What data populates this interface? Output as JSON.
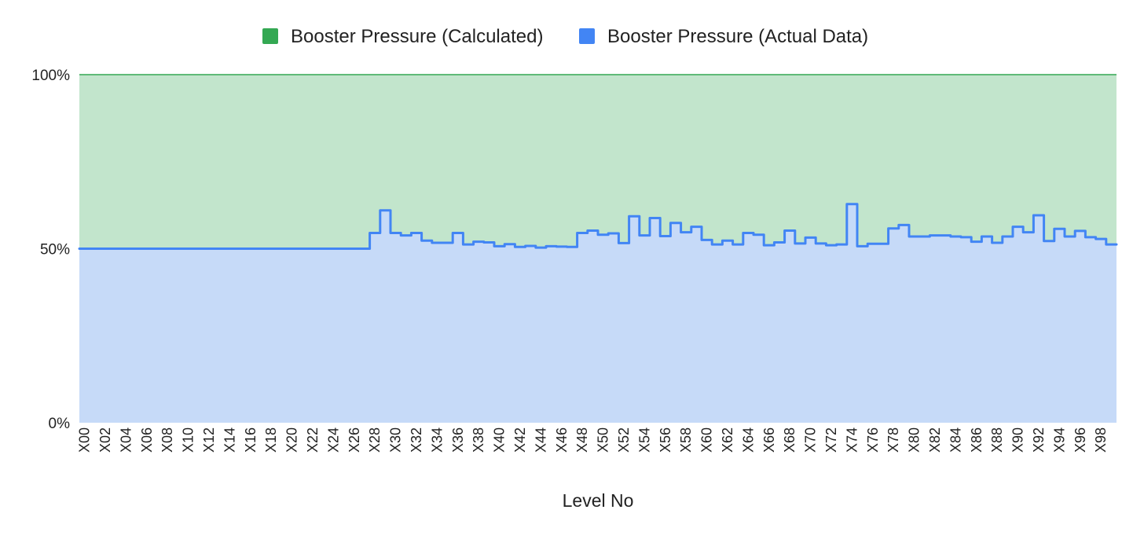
{
  "chart_data": {
    "type": "area",
    "step": true,
    "stacked": true,
    "title": "",
    "xlabel": "Level No",
    "ylabel": "",
    "ylim": [
      0,
      100
    ],
    "y_ticks": [
      "0%",
      "50%",
      "100%"
    ],
    "y_tick_values": [
      0,
      50,
      100
    ],
    "legend_position": "top",
    "categories": [
      "X00",
      "X01",
      "X02",
      "X03",
      "X04",
      "X05",
      "X06",
      "X07",
      "X08",
      "X09",
      "X10",
      "X11",
      "X12",
      "X13",
      "X14",
      "X15",
      "X16",
      "X17",
      "X18",
      "X19",
      "X20",
      "X21",
      "X22",
      "X23",
      "X24",
      "X25",
      "X26",
      "X27",
      "X28",
      "X29",
      "X30",
      "X31",
      "X32",
      "X33",
      "X34",
      "X35",
      "X36",
      "X37",
      "X38",
      "X39",
      "X40",
      "X41",
      "X42",
      "X43",
      "X44",
      "X45",
      "X46",
      "X47",
      "X48",
      "X49",
      "X50",
      "X51",
      "X52",
      "X53",
      "X54",
      "X55",
      "X56",
      "X57",
      "X58",
      "X59",
      "X60",
      "X61",
      "X62",
      "X63",
      "X64",
      "X65",
      "X66",
      "X67",
      "X68",
      "X69",
      "X70",
      "X71",
      "X72",
      "X73",
      "X74",
      "X75",
      "X76",
      "X77",
      "X78",
      "X79",
      "X80",
      "X81",
      "X82",
      "X83",
      "X84",
      "X85",
      "X86",
      "X87",
      "X88",
      "X89",
      "X90",
      "X91",
      "X92",
      "X93",
      "X94",
      "X95",
      "X96",
      "X97",
      "X98",
      "X99"
    ],
    "x_tick_labels": [
      "X00",
      "X02",
      "X04",
      "X06",
      "X08",
      "X10",
      "X12",
      "X14",
      "X16",
      "X18",
      "X20",
      "X22",
      "X24",
      "X26",
      "X28",
      "X30",
      "X32",
      "X34",
      "X36",
      "X38",
      "X40",
      "X42",
      "X44",
      "X46",
      "X48",
      "X50",
      "X52",
      "X54",
      "X56",
      "X58",
      "X60",
      "X62",
      "X64",
      "X66",
      "X68",
      "X70",
      "X72",
      "X74",
      "X76",
      "X78",
      "X80",
      "X82",
      "X84",
      "X86",
      "X88",
      "X90",
      "X92",
      "X94",
      "X96",
      "X98"
    ],
    "series": [
      {
        "name": "Booster Pressure (Actual Data)",
        "color": "#4285f4",
        "fill": "#c6daf8",
        "values": [
          50,
          50,
          50,
          50,
          50,
          50,
          50,
          50,
          50,
          50,
          50,
          50,
          50,
          50,
          50,
          50,
          50,
          50,
          50,
          50,
          50,
          50,
          50,
          50,
          50,
          50,
          50,
          50,
          54.5,
          61,
          54.5,
          53.8,
          54.5,
          52.3,
          51.7,
          51.7,
          54.5,
          51.2,
          52,
          51.8,
          50.7,
          51.3,
          50.5,
          50.8,
          50.3,
          50.7,
          50.6,
          50.5,
          54.5,
          55.2,
          54,
          54.4,
          51.6,
          59.3,
          53.8,
          58.8,
          53.6,
          57.4,
          54.7,
          56.3,
          52.5,
          51.2,
          52.3,
          51.2,
          54.5,
          54,
          51,
          51.8,
          55.2,
          51.5,
          53.2,
          51.5,
          51,
          51.2,
          62.8,
          50.7,
          51.4,
          51.4,
          55.8,
          56.8,
          53.5,
          53.5,
          53.8,
          53.8,
          53.5,
          53.3,
          52,
          53.5,
          51.7,
          53.5,
          56.3,
          54.7,
          59.6,
          52.2,
          55.7,
          53.5,
          55.1,
          53.3,
          52.8,
          51.2
        ]
      },
      {
        "name": "Booster Pressure (Calculated)",
        "color": "#34a853",
        "fill": "#c2e5cc",
        "values": "remainder to 100%"
      }
    ]
  },
  "legend": {
    "calculated_label": "Booster Pressure (Calculated)",
    "calculated_color": "#34a853",
    "actual_label": "Booster Pressure (Actual Data)",
    "actual_color": "#4285f4"
  }
}
